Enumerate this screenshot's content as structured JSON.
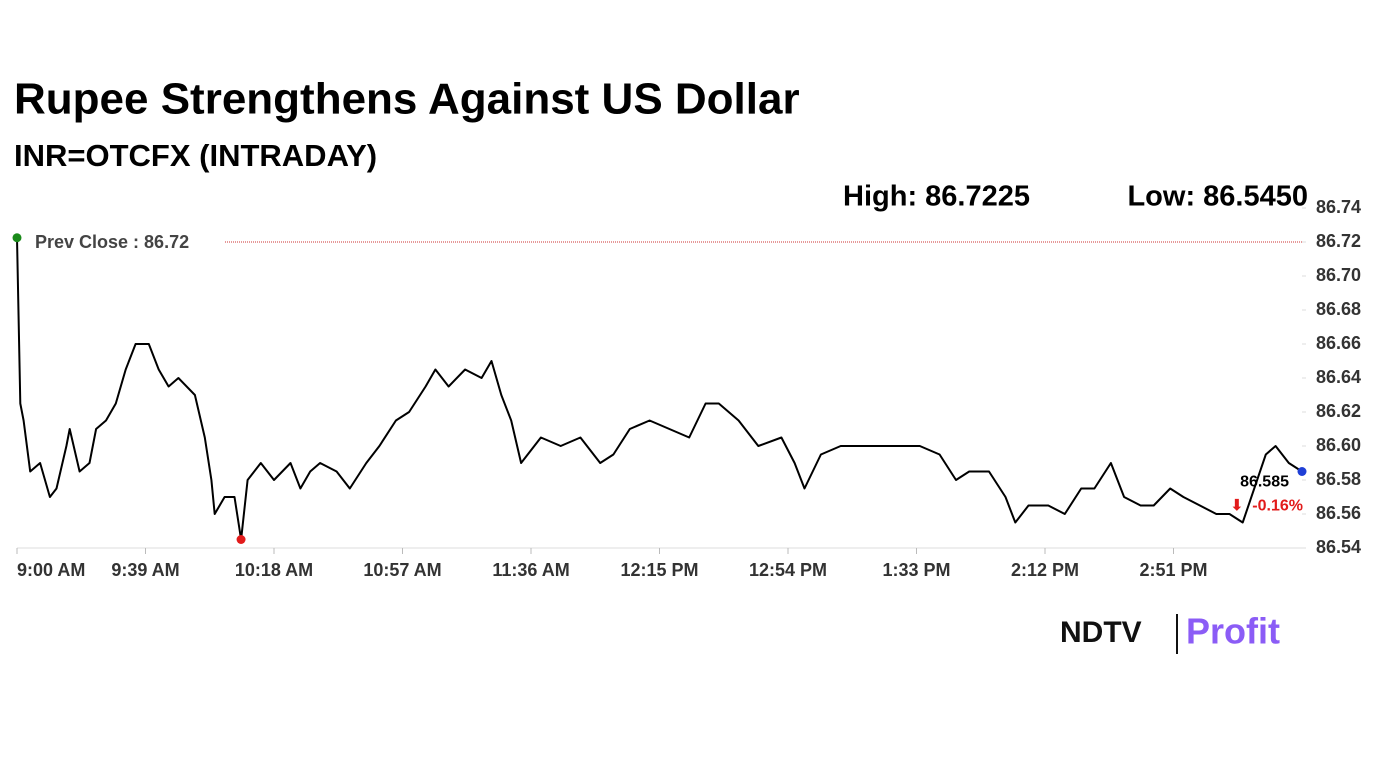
{
  "chart_data": {
    "type": "line",
    "title": "Rupee Strengthens Against US Dollar",
    "subtitle": "INR=OTCFX (INTRADAY)",
    "high": {
      "value": 86.7225,
      "label": "High: 86.7225"
    },
    "low": {
      "value": 86.545,
      "label": "Low: 86.5450"
    },
    "prev_close": {
      "value": 86.72,
      "label": "Prev Close : 86.72"
    },
    "last": {
      "value": 86.585,
      "label": "86.585"
    },
    "change": {
      "value": -0.16,
      "label": "-0.16%"
    },
    "x": [
      "9:00 AM",
      "9:01 AM",
      "9:02 AM",
      "9:04 AM",
      "9:07 AM",
      "9:10 AM",
      "9:12 AM",
      "9:15 AM",
      "9:16 AM",
      "9:19 AM",
      "9:22 AM",
      "9:24 AM",
      "9:27 AM",
      "9:30 AM",
      "9:33 AM",
      "9:36 AM",
      "9:40 AM",
      "9:43 AM",
      "9:46 AM",
      "9:49 AM",
      "9:54 AM",
      "9:57 AM",
      "9:59 AM",
      "10:00 AM",
      "10:03 AM",
      "10:06 AM",
      "10:08 AM",
      "10:10 AM",
      "10:14 AM",
      "10:18 AM",
      "10:23 AM",
      "10:26 AM",
      "10:29 AM",
      "10:32 AM",
      "10:37 AM",
      "10:41 AM",
      "10:46 AM",
      "10:50 AM",
      "10:55 AM",
      "10:59 AM",
      "11:04 AM",
      "11:07 AM",
      "11:11 AM",
      "11:16 AM",
      "11:21 AM",
      "11:24 AM",
      "11:27 AM",
      "11:30 AM",
      "11:33 AM",
      "11:39 AM",
      "11:45 AM",
      "11:51 AM",
      "11:57 AM",
      "12:01 PM",
      "12:06 PM",
      "12:12 PM",
      "12:18 PM",
      "12:24 PM",
      "12:29 PM",
      "12:33 PM",
      "12:39 PM",
      "12:45 PM",
      "12:52 PM",
      "12:56 PM",
      "12:59 PM",
      "1:04 PM",
      "1:10 PM",
      "1:16 PM",
      "1:22 PM",
      "1:28 PM",
      "1:34 PM",
      "1:40 PM",
      "1:45 PM",
      "1:49 PM",
      "1:55 PM",
      "2:00 PM",
      "2:03 PM",
      "2:07 PM",
      "2:13 PM",
      "2:18 PM",
      "2:23 PM",
      "2:27 PM",
      "2:32 PM",
      "2:36 PM",
      "2:41 PM",
      "2:45 PM",
      "2:50 PM",
      "2:54 PM",
      "2:59 PM",
      "3:04 PM",
      "3:08 PM",
      "3:12 PM",
      "3:19 PM",
      "3:22 PM",
      "3:26 PM",
      "3:30 PM"
    ],
    "series": [
      {
        "name": "INR=OTCFX",
        "color": "#000000",
        "values": [
          86.7225,
          86.625,
          86.615,
          86.585,
          86.59,
          86.57,
          86.575,
          86.6,
          86.61,
          86.585,
          86.59,
          86.61,
          86.615,
          86.625,
          86.645,
          86.66,
          86.66,
          86.645,
          86.635,
          86.64,
          86.63,
          86.605,
          86.58,
          86.56,
          86.57,
          86.57,
          86.545,
          86.58,
          86.59,
          86.58,
          86.59,
          86.575,
          86.585,
          86.59,
          86.585,
          86.575,
          86.59,
          86.6,
          86.615,
          86.62,
          86.635,
          86.645,
          86.635,
          86.645,
          86.64,
          86.65,
          86.63,
          86.615,
          86.59,
          86.605,
          86.6,
          86.605,
          86.59,
          86.595,
          86.61,
          86.615,
          86.61,
          86.605,
          86.625,
          86.625,
          86.615,
          86.6,
          86.605,
          86.59,
          86.575,
          86.595,
          86.6,
          86.6,
          86.6,
          86.6,
          86.6,
          86.595,
          86.58,
          86.585,
          86.585,
          86.57,
          86.555,
          86.565,
          86.565,
          86.56,
          86.575,
          86.575,
          86.59,
          86.57,
          86.565,
          86.565,
          86.575,
          86.57,
          86.565,
          86.56,
          86.56,
          86.555,
          86.595,
          86.6,
          86.59,
          86.585
        ]
      }
    ],
    "xlim": [
      "9:00 AM",
      "3:30 PM"
    ],
    "xticks": [
      "9:00 AM",
      "9:39 AM",
      "10:18 AM",
      "10:57 AM",
      "11:36 AM",
      "12:15 PM",
      "12:54 PM",
      "1:33 PM",
      "2:12 PM",
      "2:51 PM"
    ],
    "ylim": [
      86.54,
      86.74
    ],
    "yticks": [
      86.54,
      86.56,
      86.58,
      {
        "value": 86.6,
        "label": "86.60"
      },
      86.62,
      86.64,
      86.66,
      86.68,
      {
        "value": 86.7,
        "label": "86.70"
      },
      86.72,
      86.74
    ],
    "grid": false
  },
  "branding": {
    "left": "NDTV",
    "right": "Profit"
  }
}
